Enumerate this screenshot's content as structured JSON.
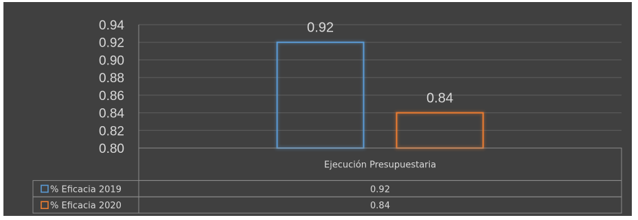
{
  "chart_data": {
    "type": "bar",
    "categories": [
      "Ejecución Presupuestaria"
    ],
    "series": [
      {
        "name": "% Eficacia 2019",
        "values": [
          0.92
        ],
        "color": "#5b9bd5",
        "data_label": "0.92",
        "table_value": "0.92"
      },
      {
        "name": "% Eficacia 2020",
        "values": [
          0.84
        ],
        "color": "#ed7d31",
        "data_label": "0.84",
        "table_value": "0.84"
      }
    ],
    "ylim": [
      0.8,
      0.94
    ],
    "yticks": [
      "0.94",
      "0.92",
      "0.90",
      "0.88",
      "0.86",
      "0.84",
      "0.82",
      "0.80"
    ],
    "grid": true,
    "legend": "data-table",
    "background": "#404040",
    "grid_color": "#5f5f5f",
    "text_color": "#d9d9d9"
  }
}
